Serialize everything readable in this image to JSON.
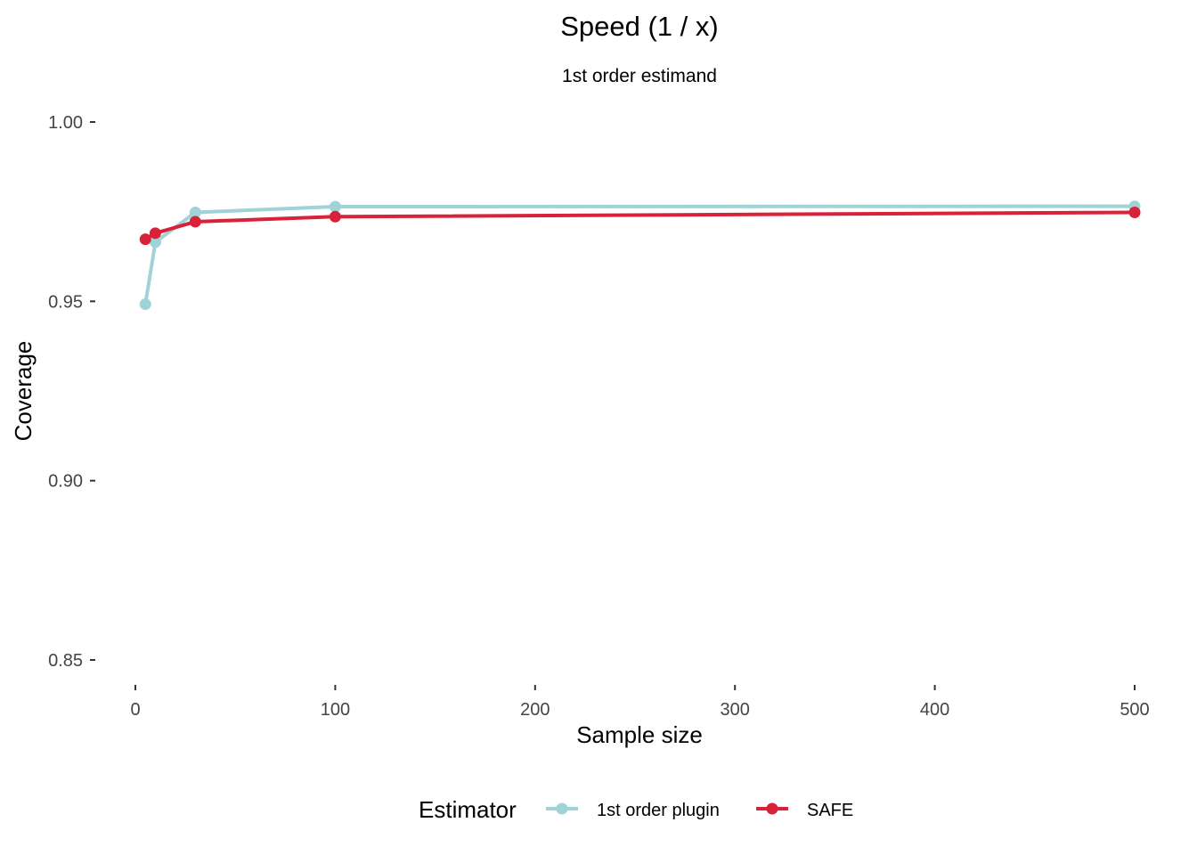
{
  "chart_data": {
    "type": "line",
    "title": "Speed (1 / x)",
    "subtitle": "1st order estimand",
    "xlabel": "Sample size",
    "ylabel": "Coverage",
    "xlim": [
      -5,
      505
    ],
    "ylim": [
      0.85,
      1.0
    ],
    "x_ticks": [
      0,
      100,
      200,
      300,
      400,
      500
    ],
    "y_ticks": [
      0.85,
      0.9,
      0.95,
      1.0
    ],
    "x_tick_labels": [
      "0",
      "100",
      "200",
      "300",
      "400",
      "500"
    ],
    "y_tick_labels": [
      "0.85",
      "0.90",
      "0.95",
      "1.00"
    ],
    "grid": false,
    "legend": {
      "title": "Estimator",
      "position": "bottom"
    },
    "x": [
      5,
      10,
      30,
      100,
      500
    ],
    "series": [
      {
        "name": "1st order plugin",
        "color": "#9fd3d6",
        "values": [
          0.9492,
          0.9665,
          0.9748,
          0.9764,
          0.9765
        ]
      },
      {
        "name": "SAFE",
        "color": "#d9213a",
        "values": [
          0.9673,
          0.969,
          0.9722,
          0.9736,
          0.9748
        ]
      }
    ]
  }
}
